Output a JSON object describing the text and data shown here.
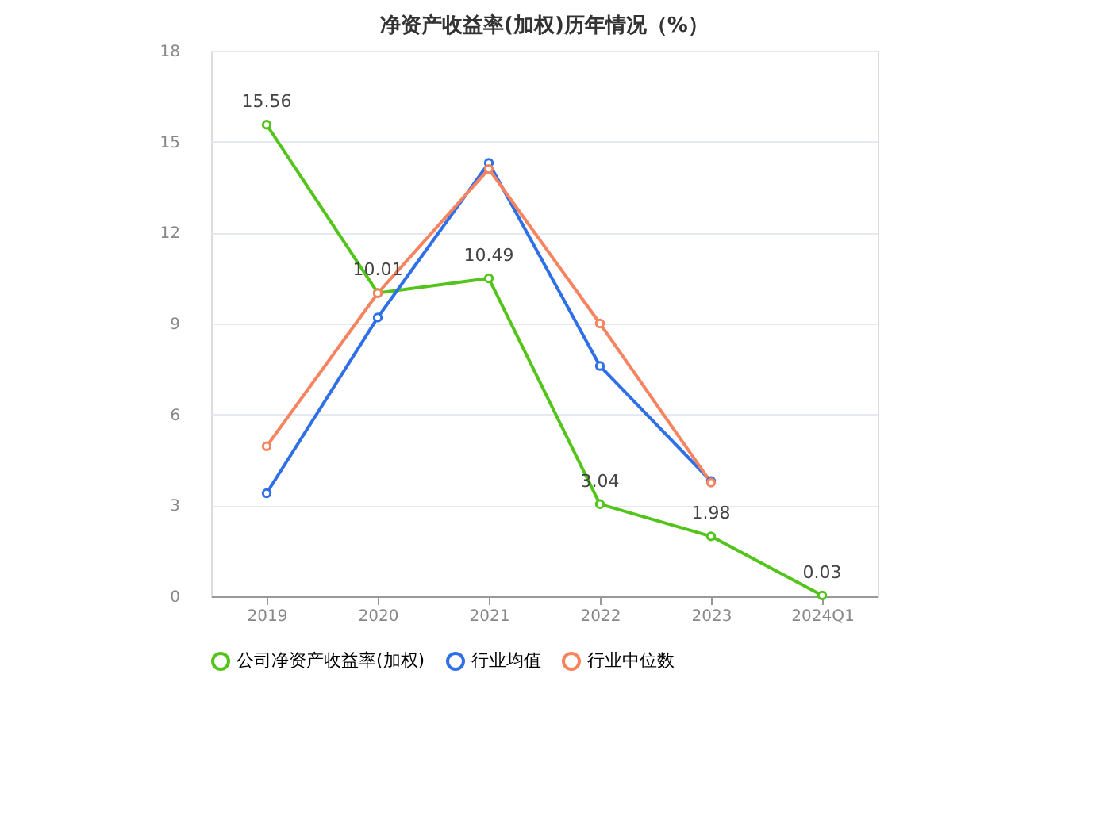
{
  "chart_data": {
    "type": "line",
    "title": "净资产收益率(加权)历年情况（%）",
    "categories": [
      "2019",
      "2020",
      "2021",
      "2022",
      "2023",
      "2024Q1"
    ],
    "series": [
      {
        "name": "公司净资产收益率(加权)",
        "color": "#52c41a",
        "values": [
          15.56,
          10.01,
          10.49,
          3.04,
          1.98,
          0.03
        ],
        "value_labels": [
          "15.56",
          "10.01",
          "10.49",
          "3.04",
          "1.98",
          "0.03"
        ]
      },
      {
        "name": "行业均值",
        "color": "#2f6fe8",
        "values": [
          3.4,
          9.2,
          14.3,
          7.6,
          3.8,
          null
        ]
      },
      {
        "name": "行业中位数",
        "color": "#f7845e",
        "values": [
          4.95,
          10.0,
          14.1,
          9.0,
          3.75,
          null
        ]
      }
    ],
    "ylim": [
      0,
      18
    ],
    "yticks": [
      0,
      3,
      6,
      9,
      12,
      15,
      18
    ],
    "grid": "y",
    "legend": "bottom",
    "marker": "circle",
    "line_style": "solid"
  }
}
